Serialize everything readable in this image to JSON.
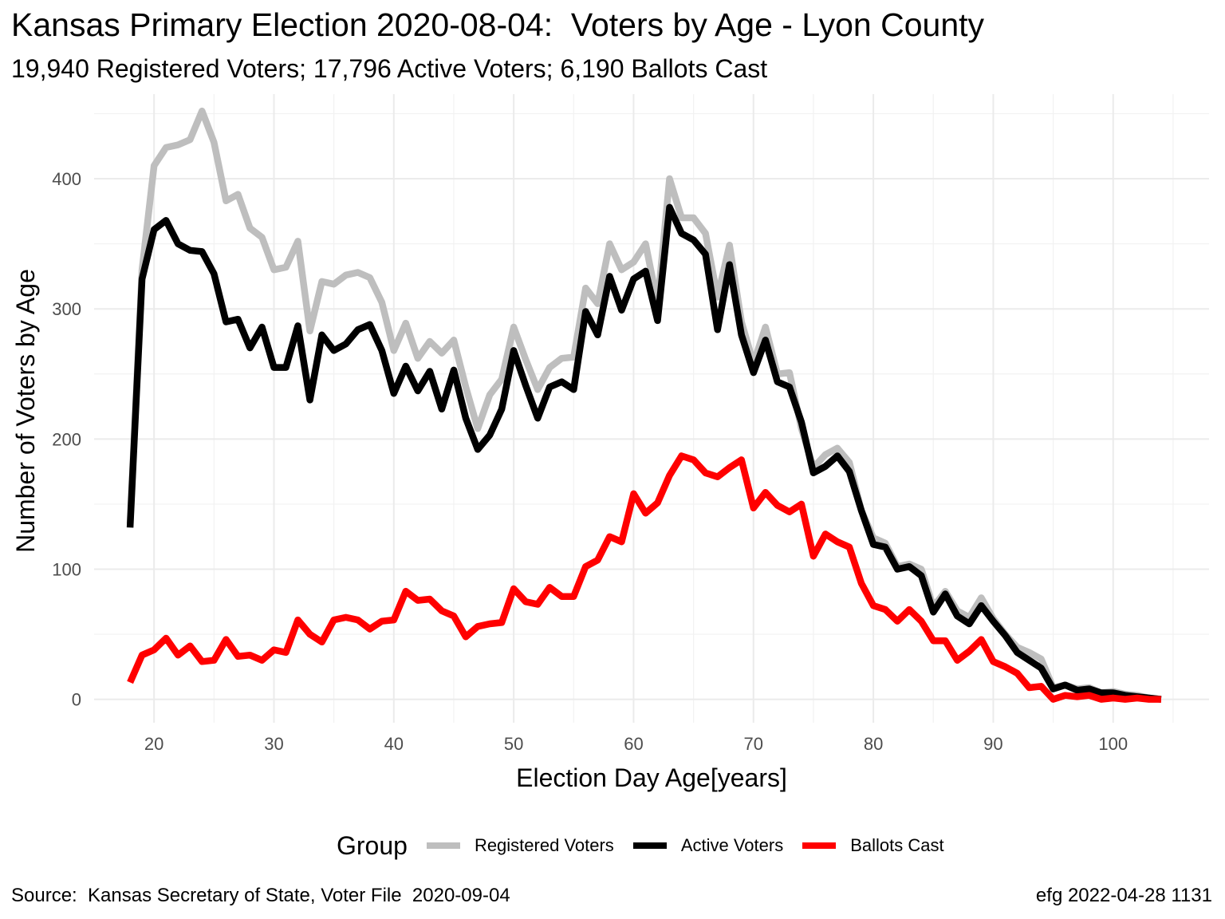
{
  "chart_data": {
    "type": "line",
    "title": "Kansas Primary Election 2020-08-04:  Voters by Age - Lyon County",
    "subtitle": "19,940 Registered Voters; 17,796 Active Voters; 6,190 Ballots Cast",
    "xlabel": "Election Day Age[years]",
    "ylabel": "Number of Voters by Age",
    "xlim": [
      15,
      108
    ],
    "ylim": [
      -18,
      465
    ],
    "x_ticks": [
      20,
      30,
      40,
      50,
      60,
      70,
      80,
      90,
      100
    ],
    "y_ticks": [
      0,
      100,
      200,
      300,
      400
    ],
    "grid": true,
    "legend": {
      "title": "Group",
      "position": "bottom"
    },
    "x": [
      18,
      19,
      20,
      21,
      22,
      23,
      24,
      25,
      26,
      27,
      28,
      29,
      30,
      31,
      32,
      33,
      34,
      35,
      36,
      37,
      38,
      39,
      40,
      41,
      42,
      43,
      44,
      45,
      46,
      47,
      48,
      49,
      50,
      51,
      52,
      53,
      54,
      55,
      56,
      57,
      58,
      59,
      60,
      61,
      62,
      63,
      64,
      65,
      66,
      67,
      68,
      69,
      70,
      71,
      72,
      73,
      74,
      75,
      76,
      77,
      78,
      79,
      80,
      81,
      82,
      83,
      84,
      85,
      86,
      87,
      88,
      89,
      90,
      91,
      92,
      93,
      94,
      95,
      96,
      97,
      98,
      99,
      100,
      101,
      102,
      103,
      104
    ],
    "series": [
      {
        "name": "Registered Voters",
        "color": "#bebebe",
        "values": [
          135,
          330,
          410,
          424,
          426,
          430,
          452,
          428,
          383,
          388,
          362,
          355,
          330,
          332,
          352,
          283,
          321,
          319,
          326,
          328,
          324,
          305,
          268,
          289,
          262,
          275,
          266,
          276,
          240,
          208,
          234,
          246,
          286,
          261,
          238,
          255,
          262,
          263,
          316,
          304,
          350,
          330,
          336,
          350,
          304,
          400,
          370,
          370,
          358,
          309,
          349,
          290,
          258,
          286,
          250,
          251,
          208,
          178,
          188,
          193,
          182,
          145,
          124,
          120,
          102,
          104,
          100,
          71,
          83,
          68,
          63,
          78,
          62,
          50,
          40,
          36,
          31,
          9,
          11,
          8,
          9,
          5,
          6,
          4,
          3,
          1,
          0
        ]
      },
      {
        "name": "Active Voters",
        "color": "#000000",
        "values": [
          132,
          323,
          361,
          368,
          350,
          345,
          344,
          327,
          290,
          292,
          270,
          286,
          255,
          255,
          287,
          230,
          280,
          268,
          273,
          284,
          288,
          268,
          235,
          256,
          237,
          252,
          223,
          253,
          216,
          192,
          203,
          223,
          268,
          241,
          216,
          240,
          244,
          238,
          298,
          280,
          325,
          299,
          323,
          329,
          291,
          378,
          358,
          353,
          342,
          284,
          334,
          280,
          251,
          276,
          244,
          240,
          213,
          174,
          179,
          187,
          175,
          145,
          119,
          117,
          100,
          102,
          95,
          67,
          81,
          64,
          58,
          72,
          60,
          49,
          36,
          30,
          24,
          8,
          11,
          7,
          8,
          5,
          5,
          3,
          2,
          1,
          0
        ]
      },
      {
        "name": "Ballots Cast",
        "color": "#ff0000",
        "values": [
          13,
          34,
          38,
          47,
          34,
          41,
          29,
          30,
          46,
          33,
          34,
          30,
          38,
          36,
          61,
          50,
          44,
          61,
          63,
          61,
          54,
          60,
          61,
          83,
          76,
          77,
          68,
          64,
          48,
          56,
          58,
          59,
          85,
          75,
          73,
          86,
          79,
          79,
          102,
          107,
          125,
          121,
          158,
          143,
          151,
          172,
          187,
          184,
          174,
          171,
          178,
          184,
          147,
          159,
          149,
          144,
          150,
          110,
          127,
          121,
          117,
          89,
          72,
          69,
          60,
          69,
          60,
          45,
          45,
          30,
          37,
          46,
          29,
          25,
          20,
          9,
          10,
          0,
          3,
          2,
          3,
          0,
          1,
          0,
          1,
          0,
          0
        ]
      }
    ]
  },
  "caption": {
    "source": "Source:  Kansas Secretary of State, Voter File  2020-09-04",
    "credit": "efg 2022-04-28 1131"
  }
}
